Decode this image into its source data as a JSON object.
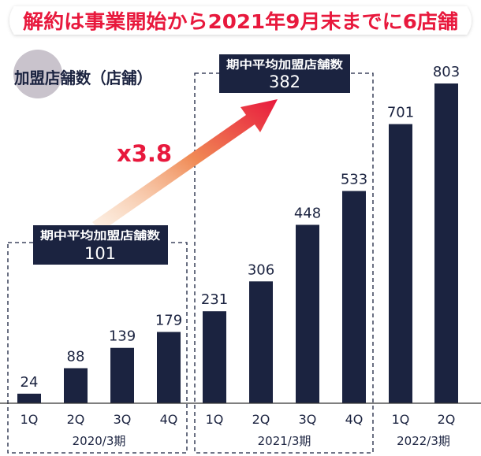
{
  "banner": {
    "text": "解約は事業開始から2021年9月末までに6店舗"
  },
  "unit_label": "加盟店舗数（店舗）",
  "colors": {
    "bar": "#1b2340",
    "banner_text": "#e8193d",
    "accent_red": "#e8193d",
    "circle": "#c9c3cc",
    "axis": "#333333",
    "callout_bg": "#1b2340",
    "callout_text": "#ffffff"
  },
  "callouts": [
    {
      "title": "期中平均加盟店舗数",
      "value": "101"
    },
    {
      "title": "期中平均加盟店舗数",
      "value": "382"
    }
  ],
  "multiplier": "x3.8",
  "chart_data": {
    "type": "bar",
    "title": "",
    "ylabel": "加盟店舗数（店舗）",
    "ylim": [
      0,
      803
    ],
    "grid": false,
    "categories": [
      "1Q",
      "2Q",
      "3Q",
      "4Q",
      "1Q",
      "2Q",
      "3Q",
      "4Q",
      "1Q",
      "2Q"
    ],
    "values": [
      24,
      88,
      139,
      179,
      231,
      306,
      448,
      533,
      701,
      803
    ],
    "periods": [
      {
        "label": "2020/3期",
        "start": 0,
        "end": 3
      },
      {
        "label": "2021/3期",
        "start": 4,
        "end": 7
      },
      {
        "label": "2022/3期",
        "start": 8,
        "end": 9
      }
    ]
  }
}
